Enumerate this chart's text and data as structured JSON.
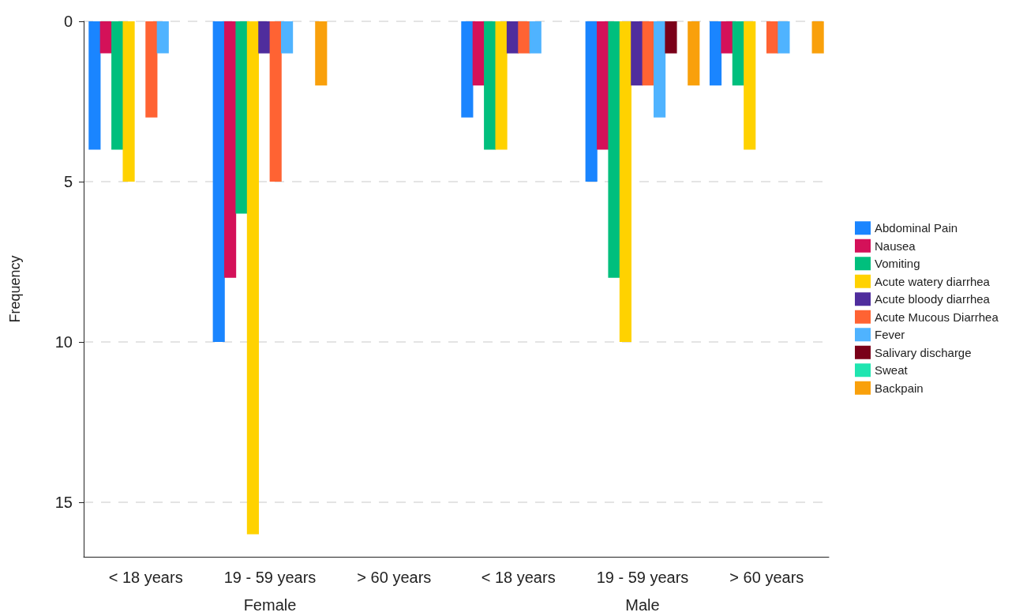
{
  "chart_data": {
    "type": "bar",
    "ylabel": "Frequency",
    "categories": [
      "< 18 years",
      "19 - 59 years",
      "> 60 years",
      "< 18 years",
      "19 - 59 years",
      "> 60 years"
    ],
    "annotations": [
      "Female",
      "Male"
    ],
    "series": [
      {
        "name": "Abdominal Pain",
        "color": "#1a85ff",
        "values": [
          4,
          10,
          0,
          3,
          5,
          2
        ]
      },
      {
        "name": "Nausea",
        "color": "#d41159",
        "values": [
          1,
          8,
          0,
          2,
          4,
          1
        ]
      },
      {
        "name": "Vomiting",
        "color": "#00bf7d",
        "values": [
          4,
          6,
          0,
          4,
          8,
          2
        ]
      },
      {
        "name": "Acute watery diarrhea",
        "color": "#ffd200",
        "values": [
          5,
          16,
          0,
          4,
          10,
          4
        ]
      },
      {
        "name": "Acute bloody diarrhea",
        "color": "#4f2d9d",
        "values": [
          0,
          1,
          0,
          1,
          2,
          0
        ]
      },
      {
        "name": "Acute Mucous Diarrhea",
        "color": "#ff6333",
        "values": [
          3,
          5,
          0,
          1,
          2,
          1
        ]
      },
      {
        "name": "Fever",
        "color": "#4fb3ff",
        "values": [
          1,
          1,
          0,
          1,
          3,
          1
        ]
      },
      {
        "name": "Salivary discharge",
        "color": "#7a0019",
        "values": [
          0,
          0,
          0,
          0,
          1,
          0
        ]
      },
      {
        "name": "Sweat",
        "color": "#1fe5b0",
        "values": [
          0,
          0,
          0,
          0,
          0,
          0
        ]
      },
      {
        "name": "Backpain",
        "color": "#f9a00b",
        "values": [
          0,
          2,
          0,
          0,
          2,
          1
        ]
      }
    ],
    "ylim": [
      16.7,
      0
    ],
    "yticks": [
      0,
      5,
      10,
      15
    ],
    "grid": "y",
    "legend": "right"
  }
}
